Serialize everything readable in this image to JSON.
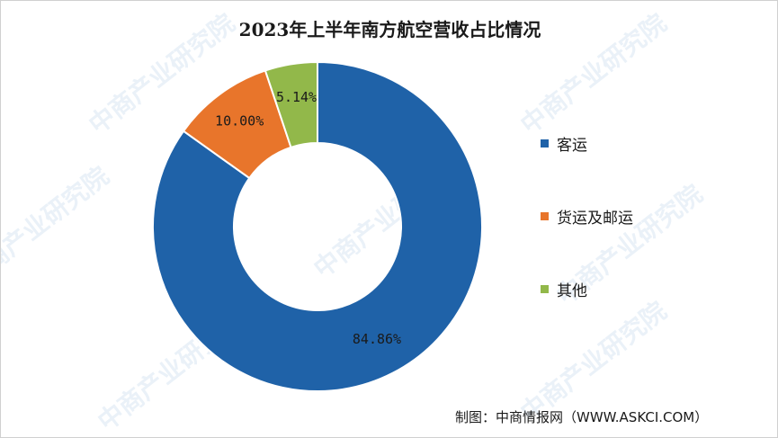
{
  "chart_data": {
    "type": "pie",
    "title": "2023年上半年南方航空营收占比情况",
    "categories": [
      "客运",
      "货运及邮运",
      "其他"
    ],
    "values": [
      84.86,
      10.0,
      5.14
    ],
    "data_labels": [
      "84.86%",
      "10.00%",
      "5.14%"
    ],
    "colors": [
      "#1f62a8",
      "#e8752b",
      "#92b84a"
    ],
    "donut": true,
    "legend_position": "right"
  },
  "footer": {
    "source": "制图：中商情报网（WWW.ASKCI.COM）"
  },
  "watermark": {
    "text": "中商产业研究院"
  }
}
